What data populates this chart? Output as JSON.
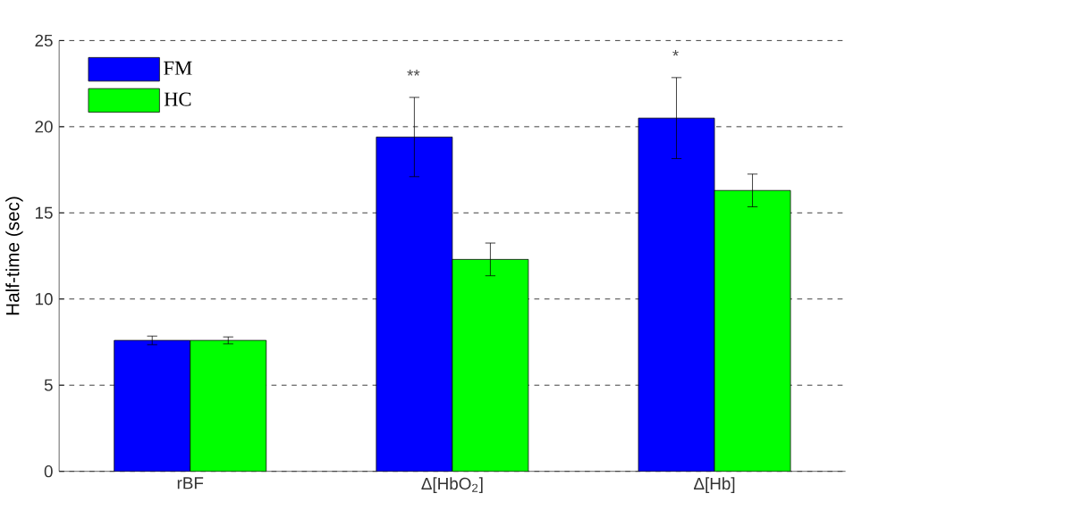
{
  "chart_data": {
    "type": "bar",
    "ylabel": "Half-time (sec)",
    "categories": [
      "rBF",
      "Δ[HbO$_{2}$]",
      "Δ[Hb]"
    ],
    "series": [
      {
        "name": "FM",
        "color": "#0000ff",
        "values": [
          7.6,
          19.4,
          20.5
        ],
        "errors": [
          0.25,
          2.3,
          2.35
        ]
      },
      {
        "name": "HC",
        "color": "#00ff00",
        "values": [
          7.6,
          12.3,
          16.3
        ],
        "errors": [
          0.2,
          0.95,
          0.95
        ]
      }
    ],
    "ylim": [
      0,
      25
    ],
    "yticks": [
      0,
      5,
      10,
      15,
      20,
      25
    ],
    "grid": "y",
    "legend": "top left",
    "annotations": [
      "**",
      "*"
    ]
  }
}
